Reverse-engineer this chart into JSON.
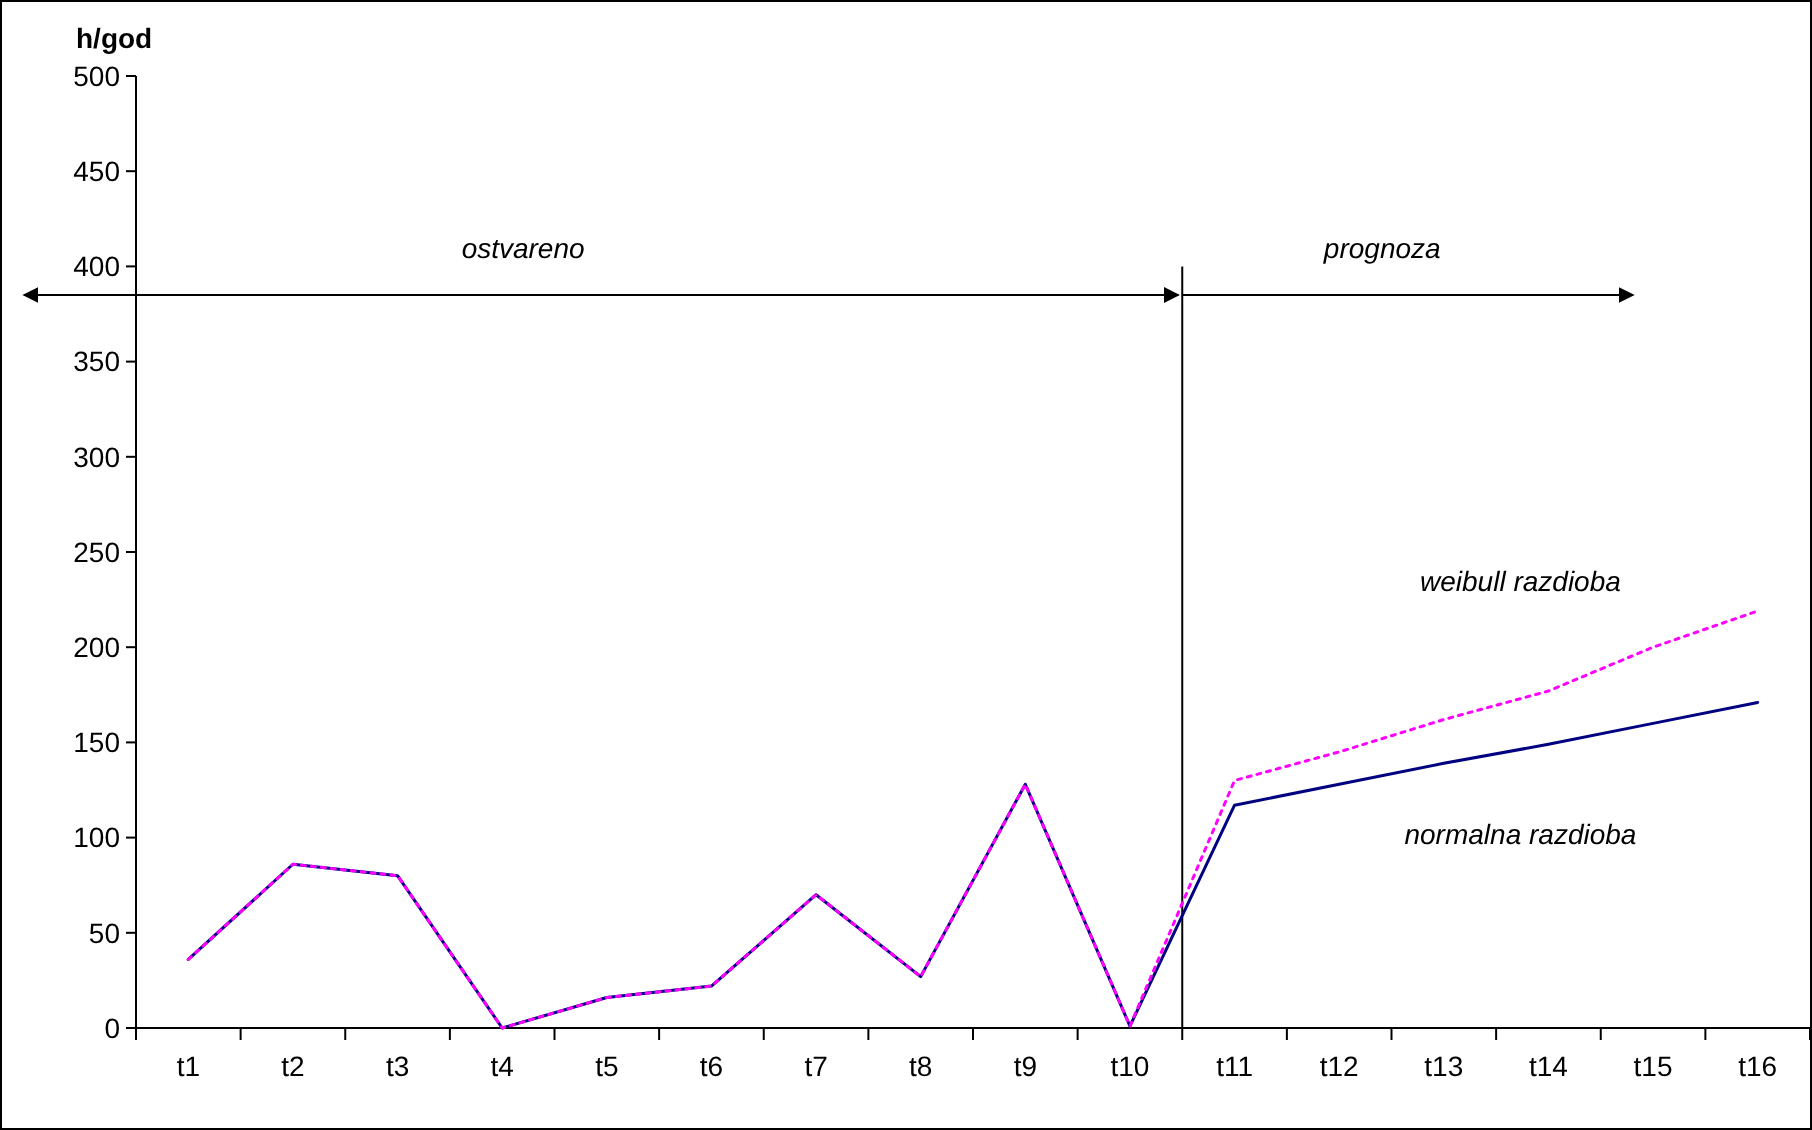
{
  "chart_data": {
    "type": "line",
    "ylabel": "h/god",
    "categories": [
      "t1",
      "t2",
      "t3",
      "t4",
      "t5",
      "t6",
      "t7",
      "t8",
      "t9",
      "t10",
      "t11",
      "t12",
      "t13",
      "t14",
      "t15",
      "t16"
    ],
    "series": [
      {
        "name": "normalna razdioba",
        "color": "#000080",
        "line_style": "solid",
        "values": [
          36,
          86,
          80,
          0,
          16,
          22,
          70,
          27,
          128,
          1,
          117,
          128,
          139,
          149,
          160,
          171
        ]
      },
      {
        "name": "weibull razdioba",
        "color": "#ff00ff",
        "line_style": "dotted",
        "values": [
          36,
          86,
          80,
          0,
          16,
          22,
          70,
          27,
          128,
          1,
          130,
          145,
          162,
          177,
          200,
          219
        ]
      }
    ],
    "ylim": [
      0,
      500
    ],
    "yticks": [
      0,
      50,
      100,
      150,
      200,
      250,
      300,
      350,
      400,
      450,
      500
    ],
    "grid": false,
    "legend": false,
    "marker": "none",
    "annotations": [
      "ostvareno",
      "prognoza"
    ]
  }
}
